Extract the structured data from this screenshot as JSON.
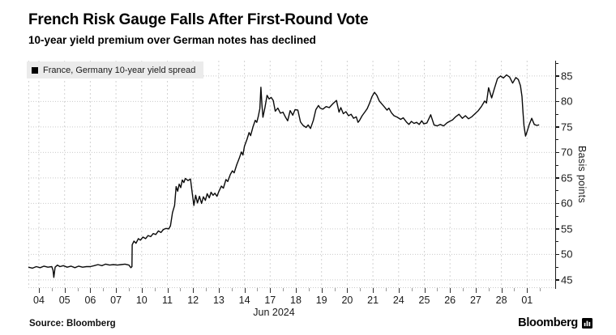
{
  "header": {
    "title": "French Risk Gauge Falls After First-Round Vote",
    "subtitle": "10-year yield premium over German notes has declined"
  },
  "legend": {
    "label": "France, Germany 10-year yield spread",
    "marker_color": "#000000",
    "background": "#ebebeb"
  },
  "source": {
    "label": "Source: Bloomberg"
  },
  "branding": {
    "logo_text": "Bloomberg",
    "logo_mark": "bloomberg-terminal-icon"
  },
  "colors": {
    "line": "#0a0a0a",
    "h_grid": "#c9c9c9",
    "v_grid": "#d2d2d2",
    "axis": "#1a1a1a",
    "text": "#1a1a1a"
  },
  "chart_data": {
    "type": "line",
    "title": "French Risk Gauge Falls After First-Round Vote",
    "subtitle": "10-year yield premium over German notes has declined",
    "ylabel": "Basis points",
    "xlabel": "Jun 2024",
    "ylim": [
      45,
      85
    ],
    "y_ticks": [
      45,
      50,
      55,
      60,
      65,
      70,
      75,
      80,
      85
    ],
    "x_tick_labels": [
      "04",
      "05",
      "06",
      "07",
      "10",
      "11",
      "12",
      "13",
      "14",
      "17",
      "18",
      "19",
      "20",
      "21",
      "24",
      "25",
      "26",
      "27",
      "28",
      "01"
    ],
    "x_unit": "trading-day index aligned to x_tick_labels (0 = Jun 04 tick)",
    "grid": true,
    "legend_position": "top-left",
    "series": [
      {
        "name": "France, Germany 10-year yield spread",
        "points": [
          [
            -0.41,
            47.5
          ],
          [
            -0.25,
            47.3
          ],
          [
            -0.1,
            47.6
          ],
          [
            0.05,
            47.4
          ],
          [
            0.2,
            47.7
          ],
          [
            0.35,
            47.5
          ],
          [
            0.5,
            47.6
          ],
          [
            0.55,
            46.9
          ],
          [
            0.58,
            45.5
          ],
          [
            0.63,
            47.5
          ],
          [
            0.72,
            47.9
          ],
          [
            0.82,
            47.6
          ],
          [
            0.95,
            47.8
          ],
          [
            1.1,
            47.5
          ],
          [
            1.25,
            47.7
          ],
          [
            1.4,
            47.4
          ],
          [
            1.55,
            47.7
          ],
          [
            1.7,
            47.5
          ],
          [
            1.85,
            47.6
          ],
          [
            2.0,
            47.6
          ],
          [
            2.15,
            47.8
          ],
          [
            2.3,
            48.0
          ],
          [
            2.45,
            47.8
          ],
          [
            2.6,
            48.1
          ],
          [
            2.75,
            47.9
          ],
          [
            2.9,
            48.0
          ],
          [
            3.05,
            47.9
          ],
          [
            3.2,
            48.0
          ],
          [
            3.35,
            48.1
          ],
          [
            3.5,
            47.9
          ],
          [
            3.58,
            47.4
          ],
          [
            3.62,
            47.6
          ],
          [
            3.63,
            51.9
          ],
          [
            3.7,
            52.6
          ],
          [
            3.78,
            52.2
          ],
          [
            3.87,
            53.1
          ],
          [
            3.95,
            52.8
          ],
          [
            4.05,
            53.4
          ],
          [
            4.15,
            53.1
          ],
          [
            4.25,
            53.7
          ],
          [
            4.35,
            53.5
          ],
          [
            4.45,
            54.1
          ],
          [
            4.55,
            53.9
          ],
          [
            4.65,
            54.6
          ],
          [
            4.75,
            54.3
          ],
          [
            4.85,
            54.9
          ],
          [
            4.95,
            55.1
          ],
          [
            5.05,
            55.0
          ],
          [
            5.12,
            55.6
          ],
          [
            5.2,
            58.2
          ],
          [
            5.28,
            59.6
          ],
          [
            5.34,
            63.3
          ],
          [
            5.4,
            62.4
          ],
          [
            5.46,
            63.8
          ],
          [
            5.52,
            63.1
          ],
          [
            5.58,
            64.6
          ],
          [
            5.64,
            64.1
          ],
          [
            5.7,
            64.9
          ],
          [
            5.8,
            64.5
          ],
          [
            5.9,
            64.8
          ],
          [
            5.97,
            62.0
          ],
          [
            6.03,
            59.6
          ],
          [
            6.1,
            61.6
          ],
          [
            6.17,
            60.1
          ],
          [
            6.25,
            61.4
          ],
          [
            6.33,
            60.0
          ],
          [
            6.4,
            61.3
          ],
          [
            6.48,
            60.6
          ],
          [
            6.55,
            61.9
          ],
          [
            6.63,
            61.1
          ],
          [
            6.7,
            62.2
          ],
          [
            6.78,
            61.6
          ],
          [
            6.85,
            62.0
          ],
          [
            6.93,
            61.4
          ],
          [
            7.0,
            62.3
          ],
          [
            7.1,
            63.4
          ],
          [
            7.18,
            63.0
          ],
          [
            7.28,
            64.7
          ],
          [
            7.35,
            64.3
          ],
          [
            7.45,
            65.7
          ],
          [
            7.53,
            66.4
          ],
          [
            7.6,
            66.0
          ],
          [
            7.7,
            67.6
          ],
          [
            7.8,
            68.9
          ],
          [
            7.88,
            70.1
          ],
          [
            7.94,
            69.5
          ],
          [
            8.0,
            71.2
          ],
          [
            8.1,
            72.6
          ],
          [
            8.18,
            73.9
          ],
          [
            8.24,
            73.3
          ],
          [
            8.33,
            75.0
          ],
          [
            8.42,
            76.3
          ],
          [
            8.48,
            75.9
          ],
          [
            8.54,
            77.1
          ],
          [
            8.6,
            78.6
          ],
          [
            8.64,
            82.8
          ],
          [
            8.68,
            79.3
          ],
          [
            8.72,
            76.9
          ],
          [
            8.8,
            78.9
          ],
          [
            8.88,
            81.2
          ],
          [
            8.96,
            80.5
          ],
          [
            9.04,
            80.8
          ],
          [
            9.12,
            80.2
          ],
          [
            9.2,
            78.1
          ],
          [
            9.3,
            78.7
          ],
          [
            9.4,
            77.7
          ],
          [
            9.5,
            77.9
          ],
          [
            9.6,
            76.9
          ],
          [
            9.68,
            76.2
          ],
          [
            9.78,
            78.2
          ],
          [
            9.88,
            77.3
          ],
          [
            9.97,
            78.4
          ],
          [
            10.08,
            78.3
          ],
          [
            10.18,
            76.0
          ],
          [
            10.28,
            75.3
          ],
          [
            10.4,
            74.9
          ],
          [
            10.48,
            75.4
          ],
          [
            10.57,
            74.7
          ],
          [
            10.68,
            76.3
          ],
          [
            10.78,
            78.4
          ],
          [
            10.88,
            79.2
          ],
          [
            10.95,
            78.7
          ],
          [
            11.05,
            78.5
          ],
          [
            11.18,
            79.0
          ],
          [
            11.3,
            78.8
          ],
          [
            11.45,
            79.6
          ],
          [
            11.58,
            80.2
          ],
          [
            11.68,
            77.9
          ],
          [
            11.75,
            78.8
          ],
          [
            11.85,
            77.6
          ],
          [
            11.95,
            78.0
          ],
          [
            12.05,
            77.2
          ],
          [
            12.15,
            77.5
          ],
          [
            12.25,
            76.7
          ],
          [
            12.35,
            77.0
          ],
          [
            12.42,
            75.9
          ],
          [
            12.47,
            76.2
          ],
          [
            12.58,
            77.2
          ],
          [
            12.68,
            77.9
          ],
          [
            12.78,
            78.6
          ],
          [
            12.88,
            79.8
          ],
          [
            12.96,
            80.9
          ],
          [
            13.06,
            81.8
          ],
          [
            13.15,
            81.2
          ],
          [
            13.25,
            80.1
          ],
          [
            13.35,
            79.5
          ],
          [
            13.45,
            78.9
          ],
          [
            13.55,
            78.3
          ],
          [
            13.62,
            78.7
          ],
          [
            13.72,
            77.8
          ],
          [
            13.82,
            77.2
          ],
          [
            13.95,
            76.9
          ],
          [
            14.08,
            76.5
          ],
          [
            14.18,
            76.8
          ],
          [
            14.3,
            76.0
          ],
          [
            14.4,
            75.5
          ],
          [
            14.5,
            76.1
          ],
          [
            14.6,
            75.7
          ],
          [
            14.7,
            75.9
          ],
          [
            14.8,
            75.5
          ],
          [
            14.9,
            76.2
          ],
          [
            14.98,
            75.6
          ],
          [
            15.1,
            75.8
          ],
          [
            15.25,
            77.4
          ],
          [
            15.38,
            75.4
          ],
          [
            15.5,
            75.2
          ],
          [
            15.62,
            75.5
          ],
          [
            15.75,
            75.2
          ],
          [
            15.88,
            75.8
          ],
          [
            15.98,
            76.1
          ],
          [
            16.1,
            76.4
          ],
          [
            16.22,
            77.0
          ],
          [
            16.35,
            77.5
          ],
          [
            16.48,
            76.7
          ],
          [
            16.6,
            77.2
          ],
          [
            16.72,
            76.6
          ],
          [
            16.85,
            77.0
          ],
          [
            16.95,
            77.5
          ],
          [
            17.1,
            78.2
          ],
          [
            17.22,
            79.0
          ],
          [
            17.35,
            80.1
          ],
          [
            17.42,
            79.7
          ],
          [
            17.5,
            82.7
          ],
          [
            17.62,
            80.7
          ],
          [
            17.72,
            82.4
          ],
          [
            17.85,
            84.5
          ],
          [
            17.97,
            85.0
          ],
          [
            18.08,
            84.6
          ],
          [
            18.2,
            85.2
          ],
          [
            18.32,
            84.8
          ],
          [
            18.44,
            83.6
          ],
          [
            18.56,
            84.7
          ],
          [
            18.66,
            84.3
          ],
          [
            18.74,
            83.1
          ],
          [
            18.8,
            81.0
          ],
          [
            18.84,
            78.0
          ],
          [
            18.88,
            75.2
          ],
          [
            18.94,
            73.2
          ],
          [
            19.0,
            74.1
          ],
          [
            19.08,
            75.4
          ],
          [
            19.18,
            76.7
          ],
          [
            19.28,
            75.5
          ],
          [
            19.38,
            75.3
          ],
          [
            19.45,
            75.4
          ]
        ]
      }
    ]
  }
}
